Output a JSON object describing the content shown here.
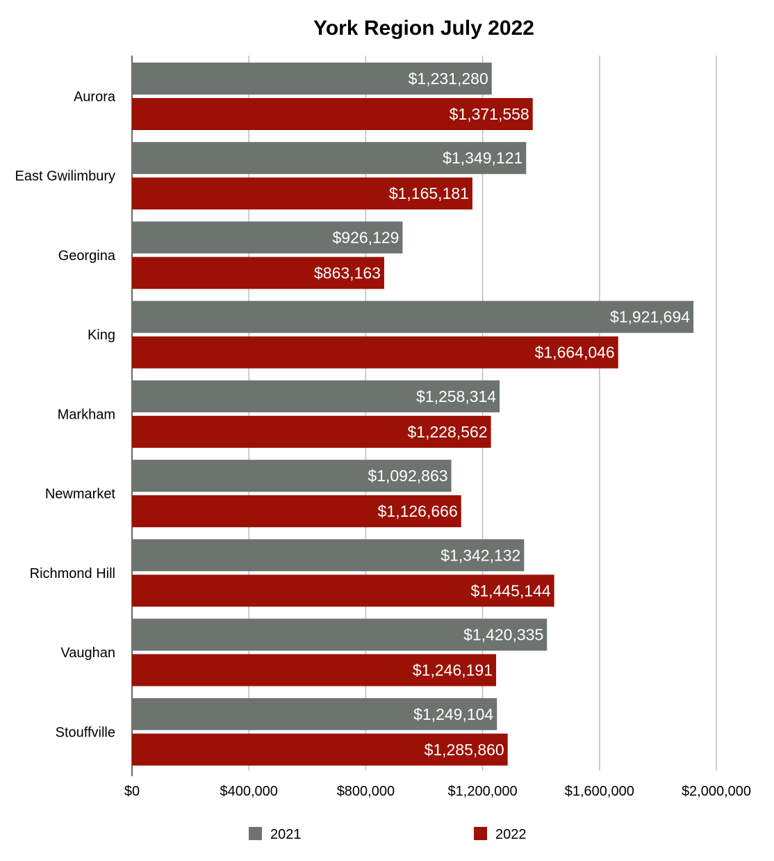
{
  "chart_data": {
    "type": "bar",
    "orientation": "horizontal",
    "title": "York Region July 2022",
    "categories": [
      "Aurora",
      "East Gwilimbury",
      "Georgina",
      "King",
      "Markham",
      "Newmarket",
      "Richmond Hill",
      "Vaughan",
      "Stouffville"
    ],
    "series": [
      {
        "name": "2021",
        "color": "#6d736f",
        "values": [
          1231280,
          1349121,
          926129,
          1921694,
          1258314,
          1092863,
          1342132,
          1420335,
          1249104
        ],
        "labels": [
          "$1,231,280",
          "$1,349,121",
          "$926,129",
          "$1,921,694",
          "$1,258,314",
          "$1,092,863",
          "$1,342,132",
          "$1,420,335",
          "$1,249,104"
        ]
      },
      {
        "name": "2022",
        "color": "#9b1106",
        "values": [
          1371558,
          1165181,
          863163,
          1664046,
          1228562,
          1126666,
          1445144,
          1246191,
          1285860
        ],
        "labels": [
          "$1,371,558",
          "$1,165,181",
          "$863,163",
          "$1,664,046",
          "$1,228,562",
          "$1,126,666",
          "$1,445,144",
          "$1,246,191",
          "$1,285,860"
        ]
      }
    ],
    "xlim": [
      0,
      2000000
    ],
    "xticks": [
      0,
      400000,
      800000,
      1200000,
      1600000,
      2000000
    ],
    "xtick_labels": [
      "$0",
      "$400,000",
      "$800,000",
      "$1,200,000",
      "$1,600,000",
      "$2,000,000"
    ],
    "grid": true,
    "legend_position": "bottom"
  }
}
